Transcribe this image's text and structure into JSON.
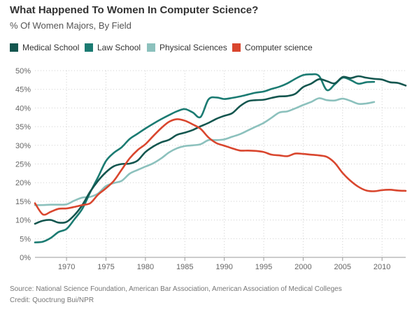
{
  "title": "What Happened To Women In Computer Science?",
  "subtitle": "% Of Women Majors, By Field",
  "source": "Source: National Science Foundation, American Bar Association, American Association of Medical Colleges",
  "credit": "Credit: Quoctrung Bui/NPR",
  "chart_data": {
    "type": "line",
    "title": "What Happened To Women In Computer Science?",
    "subtitle": "% Of Women Majors, By Field",
    "xlim": [
      1966,
      2013
    ],
    "ylim": [
      0,
      50
    ],
    "x_ticks": [
      1970,
      1975,
      1980,
      1985,
      1990,
      1995,
      2000,
      2005,
      2010
    ],
    "y_ticks": [
      0,
      5,
      10,
      15,
      20,
      25,
      30,
      35,
      40,
      45,
      50
    ],
    "y_tick_labels": [
      "0%",
      "5%",
      "10%",
      "15%",
      "20%",
      "25%",
      "30%",
      "35%",
      "40%",
      "45%",
      "50%"
    ],
    "grid": true,
    "legend_position": "top",
    "series": [
      {
        "name": "Medical School",
        "color": "#14564f",
        "x": [
          1966,
          1967,
          1968,
          1969,
          1970,
          1971,
          1972,
          1973,
          1974,
          1975,
          1976,
          1977,
          1978,
          1979,
          1980,
          1981,
          1982,
          1983,
          1984,
          1985,
          1986,
          1987,
          1988,
          1989,
          1990,
          1991,
          1992,
          1993,
          1994,
          1995,
          1996,
          1997,
          1998,
          1999,
          2000,
          2001,
          2002,
          2003,
          2004,
          2005,
          2006,
          2007,
          2008,
          2009,
          2010,
          2011,
          2012,
          2013
        ],
        "values": [
          9,
          9.8,
          10,
          9.3,
          9.5,
          11.3,
          14,
          17.6,
          20.5,
          22.8,
          24.4,
          25,
          25.1,
          25.9,
          28.2,
          29.7,
          30.8,
          31.5,
          32.8,
          33.4,
          34.1,
          35.1,
          36,
          37.1,
          37.9,
          38.6,
          40.5,
          41.8,
          42.1,
          42.2,
          42.7,
          43.1,
          43.2,
          43.8,
          45.6,
          46.5,
          47.7,
          47.2,
          46.6,
          48.3,
          48,
          48.5,
          48.1,
          47.8,
          47.6,
          46.9,
          46.7,
          46
        ]
      },
      {
        "name": "Law School",
        "color": "#1b7b72",
        "x": [
          1966,
          1967,
          1968,
          1969,
          1970,
          1971,
          1972,
          1973,
          1974,
          1975,
          1976,
          1977,
          1978,
          1979,
          1980,
          1981,
          1982,
          1983,
          1984,
          1985,
          1986,
          1987,
          1988,
          1989,
          1990,
          1991,
          1992,
          1993,
          1994,
          1995,
          1996,
          1997,
          1998,
          1999,
          2000,
          2001,
          2002,
          2003,
          2004,
          2005,
          2006,
          2007,
          2008,
          2009
        ],
        "values": [
          4,
          4.2,
          5.2,
          6.8,
          7.6,
          10.2,
          13,
          17.4,
          21.5,
          25.8,
          28,
          29.5,
          31.7,
          33.1,
          34.5,
          35.8,
          37,
          38.1,
          39.1,
          39.7,
          38.8,
          37.6,
          42.3,
          42.8,
          42.4,
          42.7,
          43.1,
          43.6,
          44.1,
          44.4,
          45.1,
          45.7,
          46.6,
          47.8,
          48.8,
          49,
          48.6,
          44.8,
          46.3,
          48.1,
          47.5,
          46.5,
          46.9,
          47
        ]
      },
      {
        "name": "Physical Sciences",
        "color": "#8cc1bd",
        "x": [
          1966,
          1967,
          1968,
          1969,
          1970,
          1971,
          1972,
          1973,
          1974,
          1975,
          1976,
          1977,
          1978,
          1979,
          1980,
          1981,
          1982,
          1983,
          1984,
          1985,
          1986,
          1987,
          1988,
          1989,
          1990,
          1991,
          1992,
          1993,
          1994,
          1995,
          1996,
          1997,
          1998,
          1999,
          2000,
          2001,
          2002,
          2003,
          2004,
          2005,
          2006,
          2007,
          2008,
          2009
        ],
        "values": [
          14,
          14,
          14.1,
          14.1,
          14.2,
          15.2,
          16,
          16.2,
          17.1,
          19.1,
          19.9,
          20.5,
          22.4,
          23.4,
          24.3,
          25.2,
          26.5,
          28.1,
          29.2,
          29.8,
          30,
          30.3,
          31.4,
          31.4,
          31.6,
          32.3,
          33,
          34,
          35,
          36,
          37.4,
          38.8,
          39.1,
          39.9,
          40.8,
          41.6,
          42.6,
          42.1,
          42,
          42.5,
          41.9,
          41.1,
          41.2,
          41.6
        ]
      },
      {
        "name": "Computer science",
        "color": "#d9462e",
        "x": [
          1966,
          1967,
          1968,
          1969,
          1970,
          1971,
          1972,
          1973,
          1974,
          1975,
          1976,
          1977,
          1978,
          1979,
          1980,
          1981,
          1982,
          1983,
          1984,
          1985,
          1986,
          1987,
          1988,
          1989,
          1990,
          1991,
          1992,
          1993,
          1994,
          1995,
          1996,
          1997,
          1998,
          1999,
          2000,
          2001,
          2002,
          2003,
          2004,
          2005,
          2006,
          2007,
          2008,
          2009,
          2010,
          2011,
          2012,
          2013
        ],
        "values": [
          14.5,
          11.5,
          12.2,
          13,
          13.1,
          13.5,
          14,
          14.5,
          16.8,
          18.5,
          20.5,
          23.5,
          26.5,
          28.7,
          30.3,
          32.5,
          34.6,
          36.3,
          37,
          36.6,
          35.6,
          34.4,
          32.1,
          30.6,
          29.9,
          29.2,
          28.6,
          28.6,
          28.5,
          28.2,
          27.5,
          27.3,
          27.1,
          27.8,
          27.7,
          27.5,
          27.3,
          26.9,
          25.3,
          22.6,
          20.5,
          18.9,
          17.9,
          17.7,
          18,
          18.1,
          17.9,
          17.8
        ]
      }
    ]
  }
}
